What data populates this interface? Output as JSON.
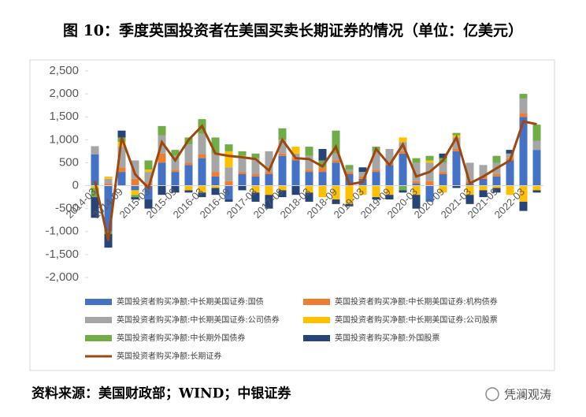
{
  "chart_data": {
    "type": "bar",
    "stacked": true,
    "title": "图 10：季度英国投资者在美国买卖长期证券的情况（单位：亿美元）",
    "source": "资料来源：美国财政部；WIND；中银证券",
    "watermark": "凭澜观涛",
    "categories": [
      "2014-03",
      null,
      "2014-09",
      null,
      "2015-03",
      null,
      "2015-09",
      null,
      "2016-03",
      null,
      "2016-09",
      null,
      "2017-03",
      null,
      "2017-09",
      null,
      "2018-03",
      null,
      "2018-09",
      null,
      "2019-03",
      null,
      "2019-09",
      null,
      "2020-03",
      null,
      "2020-09",
      null,
      "2021-03",
      null,
      "2021-09",
      null,
      "2022-03",
      null
    ],
    "ylim": [
      -2000,
      2500
    ],
    "yticks": [
      {
        "value": 2500,
        "label": "2,500"
      },
      {
        "value": 2000,
        "label": "2,000"
      },
      {
        "value": 1500,
        "label": "1,500"
      },
      {
        "value": 1000,
        "label": "1,000"
      },
      500,
      0,
      -500,
      {
        "value": -1000,
        "label": "-1,000"
      },
      {
        "value": -1500,
        "label": "-1,500"
      },
      {
        "value": -2000,
        "label": "-2,000"
      }
    ],
    "series": [
      {
        "name": "英国投资者购买净额:中长期美国证券:国债",
        "type": "bar",
        "color": "#4472c4",
        "values": [
          680,
          -1000,
          300,
          -100,
          -300,
          500,
          300,
          450,
          600,
          200,
          -300,
          250,
          200,
          250,
          650,
          550,
          300,
          300,
          500,
          250,
          150,
          300,
          450,
          700,
          50,
          -350,
          250,
          750,
          50,
          150,
          200,
          550,
          1500,
          780
        ]
      },
      {
        "name": "英国投资者购买净额:中长期美国证券:机构债券",
        "type": "bar",
        "color": "#ed7d31",
        "values": [
          0,
          50,
          100,
          150,
          50,
          200,
          50,
          50,
          80,
          100,
          100,
          50,
          50,
          50,
          50,
          50,
          50,
          100,
          50,
          50,
          50,
          50,
          50,
          50,
          50,
          100,
          50,
          50,
          50,
          50,
          50,
          50,
          80,
          0
        ]
      },
      {
        "name": "英国投资者购买净额:中长期美国证券:公司债券",
        "type": "bar",
        "color": "#a5a5a5",
        "values": [
          180,
          100,
          450,
          400,
          250,
          400,
          300,
          400,
          450,
          400,
          300,
          300,
          350,
          450,
          300,
          100,
          300,
          0,
          150,
          50,
          100,
          400,
          300,
          200,
          400,
          400,
          200,
          250,
          400,
          250,
          250,
          100,
          320,
          200
        ]
      },
      {
        "name": "英国投资者购买净额:中长期美国证券:公司股票",
        "type": "bar",
        "color": "#ffc000",
        "values": [
          -50,
          50,
          100,
          -100,
          50,
          0,
          0,
          -100,
          -150,
          -50,
          350,
          50,
          -150,
          -200,
          -100,
          150,
          -150,
          -250,
          -300,
          -400,
          -200,
          -250,
          -200,
          100,
          -200,
          50,
          -150,
          50,
          -200,
          -100,
          -50,
          -200,
          -350,
          -100
        ]
      },
      {
        "name": "英国投资者购买净额:中长期外国债券",
        "type": "bar",
        "color": "#70ad47",
        "values": [
          -200,
          -50,
          100,
          -50,
          200,
          200,
          130,
          150,
          320,
          350,
          150,
          100,
          100,
          0,
          250,
          0,
          200,
          150,
          500,
          100,
          0,
          100,
          0,
          -100,
          100,
          100,
          100,
          50,
          0,
          0,
          150,
          0,
          100,
          350
        ]
      },
      {
        "name": "英国投资者购买净额:外国股票",
        "type": "bar",
        "color": "#264478",
        "values": [
          -450,
          -300,
          150,
          -50,
          -200,
          -200,
          -150,
          -50,
          -100,
          -150,
          -50,
          -100,
          -200,
          -300,
          -150,
          -200,
          -200,
          250,
          -100,
          -50,
          100,
          -50,
          -100,
          -50,
          -300,
          0,
          100,
          -50,
          -200,
          -150,
          -100,
          80,
          -200,
          -50
        ]
      },
      {
        "name": "英国投资者购买净额:长期证券",
        "type": "line",
        "color": "#9e480e",
        "values": [
          100,
          -1200,
          1050,
          250,
          -50,
          950,
          550,
          1000,
          1300,
          700,
          650,
          620,
          580,
          330,
          1000,
          600,
          580,
          420,
          850,
          30,
          80,
          800,
          450,
          900,
          200,
          300,
          550,
          1050,
          50,
          200,
          380,
          550,
          1400,
          1340
        ]
      }
    ]
  }
}
